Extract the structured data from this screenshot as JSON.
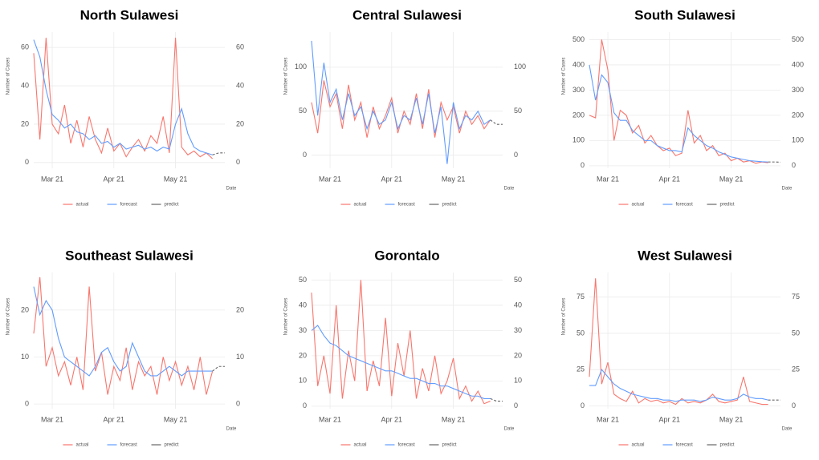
{
  "chart_data": [
    {
      "type": "line",
      "title": "North Sulawesi",
      "y_label": "Number of Cases",
      "x_label": "Date",
      "legend": "bottom",
      "grid": true,
      "categories": [
        null,
        null,
        null,
        "Mar 21",
        null,
        null,
        null,
        null,
        null,
        null,
        null,
        null,
        null,
        "Apr 21",
        null,
        null,
        null,
        null,
        null,
        null,
        null,
        null,
        null,
        "May 21",
        null,
        null,
        null,
        null,
        null,
        null,
        null,
        null
      ],
      "ylim": [
        -3,
        68
      ],
      "yticks": [
        0,
        20,
        40,
        60
      ],
      "y2lim": [
        -3,
        68
      ],
      "y2ticks": [
        0,
        20,
        40,
        60
      ],
      "series": [
        {
          "name": "actual",
          "color": "#f8766d",
          "values": [
            57,
            12,
            65,
            20,
            15,
            30,
            10,
            22,
            8,
            24,
            12,
            5,
            18,
            6,
            10,
            3,
            8,
            12,
            6,
            14,
            10,
            24,
            5,
            65,
            8,
            4,
            6,
            3,
            5,
            2,
            null,
            null
          ]
        },
        {
          "name": "forecast",
          "color": "#619cff",
          "values": [
            64,
            55,
            38,
            25,
            22,
            18,
            20,
            16,
            15,
            12,
            14,
            10,
            11,
            8,
            10,
            7,
            8,
            9,
            7,
            8,
            6,
            8,
            7,
            20,
            28,
            15,
            8,
            6,
            5,
            4,
            null,
            null
          ]
        },
        {
          "name": "predict",
          "color": "#666666",
          "values": [
            null,
            null,
            null,
            null,
            null,
            null,
            null,
            null,
            null,
            null,
            null,
            null,
            null,
            null,
            null,
            null,
            null,
            null,
            null,
            null,
            null,
            null,
            null,
            null,
            null,
            null,
            null,
            null,
            null,
            4,
            5,
            5
          ]
        }
      ]
    },
    {
      "type": "line",
      "title": "Central Sulawesi",
      "y_label": "Number of Cases",
      "x_label": "Date",
      "legend": "bottom",
      "grid": true,
      "categories": [
        null,
        null,
        null,
        "Mar 21",
        null,
        null,
        null,
        null,
        null,
        null,
        null,
        null,
        null,
        "Apr 21",
        null,
        null,
        null,
        null,
        null,
        null,
        null,
        null,
        null,
        "May 21",
        null,
        null,
        null,
        null,
        null,
        null,
        null,
        null
      ],
      "ylim": [
        -15,
        140
      ],
      "yticks": [
        0,
        50,
        100
      ],
      "y2lim": [
        -15,
        140
      ],
      "y2ticks": [
        0,
        50,
        100
      ],
      "series": [
        {
          "name": "actual",
          "color": "#f8766d",
          "values": [
            60,
            25,
            85,
            55,
            70,
            30,
            80,
            40,
            60,
            20,
            55,
            30,
            45,
            65,
            25,
            50,
            35,
            70,
            30,
            75,
            20,
            60,
            40,
            55,
            25,
            50,
            35,
            45,
            30,
            40,
            null,
            null
          ]
        },
        {
          "name": "forecast",
          "color": "#619cff",
          "values": [
            130,
            45,
            105,
            60,
            75,
            40,
            70,
            45,
            55,
            30,
            50,
            35,
            40,
            60,
            30,
            45,
            40,
            65,
            35,
            70,
            25,
            55,
            -10,
            60,
            30,
            45,
            40,
            50,
            35,
            40,
            null,
            null
          ]
        },
        {
          "name": "predict",
          "color": "#666666",
          "values": [
            null,
            null,
            null,
            null,
            null,
            null,
            null,
            null,
            null,
            null,
            null,
            null,
            null,
            null,
            null,
            null,
            null,
            null,
            null,
            null,
            null,
            null,
            null,
            null,
            null,
            null,
            null,
            null,
            null,
            40,
            35,
            35
          ]
        }
      ]
    },
    {
      "type": "line",
      "title": "South Sulawesi",
      "y_label": "Number of Cases",
      "x_label": "Date",
      "legend": "bottom",
      "grid": true,
      "categories": [
        null,
        null,
        null,
        "Mar 21",
        null,
        null,
        null,
        null,
        null,
        null,
        null,
        null,
        null,
        "Apr 21",
        null,
        null,
        null,
        null,
        null,
        null,
        null,
        null,
        null,
        "May 21",
        null,
        null,
        null,
        null,
        null,
        null,
        null,
        null
      ],
      "ylim": [
        -10,
        530
      ],
      "yticks": [
        0,
        100,
        200,
        300,
        400,
        500
      ],
      "y2lim": [
        -10,
        530
      ],
      "y2ticks": [
        0,
        100,
        200,
        300,
        400,
        500
      ],
      "series": [
        {
          "name": "actual",
          "color": "#f8766d",
          "values": [
            200,
            190,
            500,
            380,
            100,
            220,
            200,
            130,
            160,
            90,
            120,
            80,
            60,
            70,
            40,
            50,
            220,
            90,
            120,
            60,
            80,
            40,
            50,
            20,
            30,
            15,
            20,
            10,
            15,
            12,
            null,
            null
          ]
        },
        {
          "name": "forecast",
          "color": "#619cff",
          "values": [
            400,
            260,
            360,
            330,
            210,
            180,
            180,
            140,
            120,
            100,
            100,
            80,
            70,
            60,
            60,
            55,
            150,
            120,
            100,
            80,
            70,
            55,
            45,
            35,
            30,
            25,
            20,
            18,
            16,
            15,
            null,
            null
          ]
        },
        {
          "name": "predict",
          "color": "#666666",
          "values": [
            null,
            null,
            null,
            null,
            null,
            null,
            null,
            null,
            null,
            null,
            null,
            null,
            null,
            null,
            null,
            null,
            null,
            null,
            null,
            null,
            null,
            null,
            null,
            null,
            null,
            null,
            null,
            null,
            null,
            15,
            15,
            14
          ]
        }
      ]
    },
    {
      "type": "line",
      "title": "Southeast Sulawesi",
      "y_label": "Number of Cases",
      "x_label": "Date",
      "legend": "bottom",
      "grid": true,
      "categories": [
        null,
        null,
        null,
        "Mar 21",
        null,
        null,
        null,
        null,
        null,
        null,
        null,
        null,
        null,
        "Apr 21",
        null,
        null,
        null,
        null,
        null,
        null,
        null,
        null,
        null,
        "May 21",
        null,
        null,
        null,
        null,
        null,
        null,
        null,
        null
      ],
      "ylim": [
        -1,
        28
      ],
      "yticks": [
        0,
        10,
        20
      ],
      "y2lim": [
        -1,
        28
      ],
      "y2ticks": [
        0,
        10,
        20
      ],
      "series": [
        {
          "name": "actual",
          "color": "#f8766d",
          "values": [
            15,
            27,
            8,
            12,
            6,
            9,
            4,
            10,
            3,
            25,
            7,
            11,
            2,
            8,
            5,
            12,
            3,
            9,
            6,
            8,
            2,
            10,
            5,
            9,
            4,
            8,
            3,
            10,
            2,
            7,
            null,
            null
          ]
        },
        {
          "name": "forecast",
          "color": "#619cff",
          "values": [
            25,
            19,
            22,
            20,
            14,
            10,
            9,
            8,
            7,
            6,
            8,
            11,
            12,
            9,
            7,
            8,
            13,
            10,
            7,
            6,
            6,
            7,
            8,
            7,
            6,
            7,
            7,
            7,
            7,
            7,
            null,
            null
          ]
        },
        {
          "name": "predict",
          "color": "#666666",
          "values": [
            null,
            null,
            null,
            null,
            null,
            null,
            null,
            null,
            null,
            null,
            null,
            null,
            null,
            null,
            null,
            null,
            null,
            null,
            null,
            null,
            null,
            null,
            null,
            null,
            null,
            null,
            null,
            null,
            null,
            7,
            8,
            8
          ]
        }
      ]
    },
    {
      "type": "line",
      "title": "Gorontalo",
      "y_label": "Number of Cases",
      "x_label": "Date",
      "legend": "bottom",
      "grid": true,
      "categories": [
        null,
        null,
        null,
        "Mar 21",
        null,
        null,
        null,
        null,
        null,
        null,
        null,
        null,
        null,
        "Apr 21",
        null,
        null,
        null,
        null,
        null,
        null,
        null,
        null,
        null,
        "May 21",
        null,
        null,
        null,
        null,
        null,
        null,
        null,
        null
      ],
      "ylim": [
        -1,
        53
      ],
      "yticks": [
        0,
        10,
        20,
        30,
        40,
        50
      ],
      "y2lim": [
        -1,
        53
      ],
      "y2ticks": [
        0,
        10,
        20,
        30,
        40,
        50
      ],
      "series": [
        {
          "name": "actual",
          "color": "#f8766d",
          "values": [
            45,
            8,
            20,
            5,
            40,
            3,
            22,
            10,
            50,
            6,
            18,
            8,
            35,
            4,
            25,
            12,
            30,
            3,
            15,
            6,
            20,
            5,
            10,
            19,
            3,
            8,
            2,
            6,
            1,
            2,
            null,
            null
          ]
        },
        {
          "name": "forecast",
          "color": "#619cff",
          "values": [
            30,
            32,
            28,
            25,
            24,
            22,
            20,
            19,
            18,
            17,
            16,
            15,
            14,
            14,
            13,
            12,
            11,
            11,
            10,
            9,
            9,
            8,
            8,
            7,
            6,
            5,
            4,
            4,
            3,
            3,
            null,
            null
          ]
        },
        {
          "name": "predict",
          "color": "#666666",
          "values": [
            null,
            null,
            null,
            null,
            null,
            null,
            null,
            null,
            null,
            null,
            null,
            null,
            null,
            null,
            null,
            null,
            null,
            null,
            null,
            null,
            null,
            null,
            null,
            null,
            null,
            null,
            null,
            null,
            null,
            3,
            2,
            2
          ]
        }
      ]
    },
    {
      "type": "line",
      "title": "West Sulawesi",
      "y_label": "Number of Cases",
      "x_label": "Date",
      "legend": "bottom",
      "grid": true,
      "categories": [
        null,
        null,
        null,
        "Mar 21",
        null,
        null,
        null,
        null,
        null,
        null,
        null,
        null,
        null,
        "Apr 21",
        null,
        null,
        null,
        null,
        null,
        null,
        null,
        null,
        null,
        "May 21",
        null,
        null,
        null,
        null,
        null,
        null,
        null,
        null
      ],
      "ylim": [
        -2,
        92
      ],
      "yticks": [
        0,
        25,
        50,
        75
      ],
      "y2lim": [
        -2,
        92
      ],
      "y2ticks": [
        0,
        25,
        50,
        75
      ],
      "series": [
        {
          "name": "actual",
          "color": "#f8766d",
          "values": [
            20,
            88,
            15,
            30,
            8,
            5,
            3,
            10,
            2,
            5,
            3,
            4,
            2,
            3,
            1,
            5,
            2,
            3,
            2,
            4,
            8,
            3,
            2,
            3,
            4,
            20,
            3,
            2,
            1,
            1,
            null,
            null
          ]
        },
        {
          "name": "forecast",
          "color": "#619cff",
          "values": [
            14,
            14,
            25,
            20,
            15,
            12,
            10,
            8,
            7,
            6,
            5,
            5,
            4,
            4,
            3,
            4,
            4,
            4,
            3,
            4,
            6,
            5,
            4,
            4,
            5,
            8,
            6,
            5,
            5,
            4,
            null,
            null
          ]
        },
        {
          "name": "predict",
          "color": "#666666",
          "values": [
            null,
            null,
            null,
            null,
            null,
            null,
            null,
            null,
            null,
            null,
            null,
            null,
            null,
            null,
            null,
            null,
            null,
            null,
            null,
            null,
            null,
            null,
            null,
            null,
            null,
            null,
            null,
            null,
            null,
            4,
            4,
            4
          ]
        }
      ]
    }
  ]
}
